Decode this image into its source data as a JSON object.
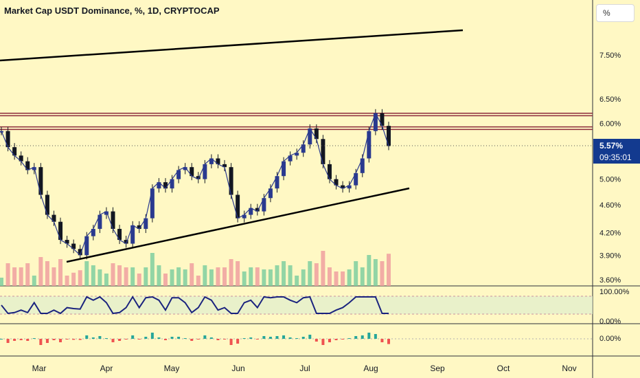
{
  "header": {
    "title": "Market Cap USDT Dominance, %, 1D, CRYPTOCAP"
  },
  "scale_button": {
    "label": "%"
  },
  "price_tag": {
    "price": "5.57%",
    "countdown": "09:35:01"
  },
  "colors": {
    "background": "#fff8c4",
    "price_tag": "#133a8f",
    "bull": "#26a69a",
    "bear": "#ef5350",
    "trendline": "#000000"
  },
  "chart_data": {
    "type": "line",
    "title": "Market Cap USDT Dominance, %, 1D, CRYPTOCAP",
    "x_tick_labels": [
      "Mar",
      "Apr",
      "May",
      "Jun",
      "Jul",
      "Aug",
      "Sep",
      "Oct",
      "Nov"
    ],
    "y_scale": "log",
    "y_tick_labels": [
      "7.50%",
      "6.50%",
      "6.00%",
      "5.00%",
      "4.60%",
      "4.20%",
      "3.90%",
      "3.60%"
    ],
    "y_ticks": [
      7.5,
      6.5,
      6.0,
      5.0,
      4.6,
      4.2,
      3.9,
      3.6
    ],
    "last_price": 5.57,
    "series": [
      {
        "values": [
          5.85,
          5.55,
          5.4,
          5.3,
          5.15,
          5.2,
          4.75,
          4.45,
          4.35,
          4.1,
          4.05,
          3.98,
          3.9,
          4.15,
          4.25,
          4.45,
          4.5,
          4.25,
          4.1,
          4.05,
          4.3,
          4.25,
          4.4,
          4.85,
          4.95,
          4.85,
          5.0,
          5.15,
          5.2,
          5.05,
          5.0,
          5.25,
          5.35,
          5.25,
          5.2,
          4.75,
          4.4,
          4.45,
          4.55,
          4.5,
          4.7,
          4.85,
          5.05,
          5.3,
          5.4,
          5.45,
          5.6,
          5.9,
          5.7,
          5.25,
          5.0,
          4.9,
          4.85,
          4.9,
          5.1,
          5.35,
          5.85,
          6.2,
          5.95,
          5.57
        ]
      }
    ],
    "levels": [
      6.2,
      6.15,
      5.93,
      5.88,
      5.58
    ],
    "lower_panels": [
      {
        "y_tick_labels": [
          "100.00%",
          "0.00%"
        ]
      },
      {
        "y_tick_labels": [
          "0.00%"
        ]
      }
    ]
  }
}
